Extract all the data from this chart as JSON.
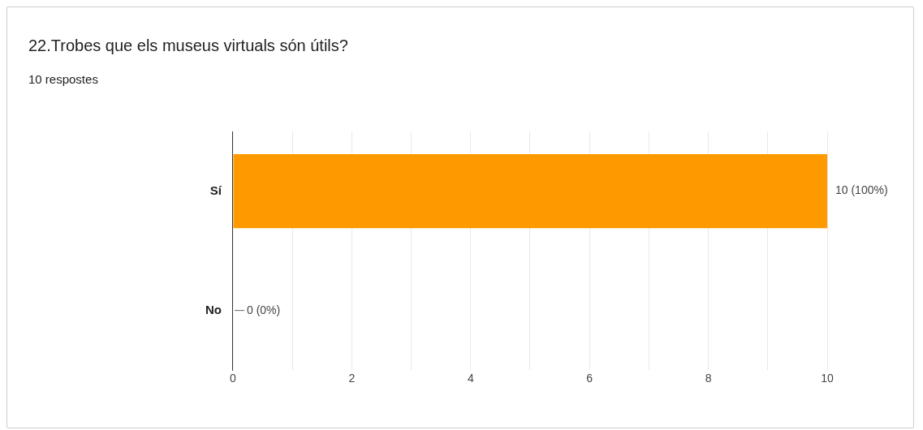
{
  "chart_data": {
    "type": "bar",
    "orientation": "horizontal",
    "title": "22.Trobes que els museus virtuals són útils?",
    "subtitle": "10 respostes",
    "categories": [
      "Sí",
      "No"
    ],
    "values": [
      10,
      0
    ],
    "color": "#ff9900",
    "value_labels": [
      "10 (100%)",
      "0 (0%)"
    ],
    "xlim": [
      0,
      10
    ],
    "xticks": [
      0,
      {
        "value": 1,
        "label": null
      },
      2,
      {
        "value": 3,
        "label": null
      },
      4,
      {
        "value": 5,
        "label": null
      },
      6,
      {
        "value": 7,
        "label": null
      },
      8,
      {
        "value": 9,
        "label": null
      },
      10
    ],
    "grid": "x",
    "legend": false
  }
}
